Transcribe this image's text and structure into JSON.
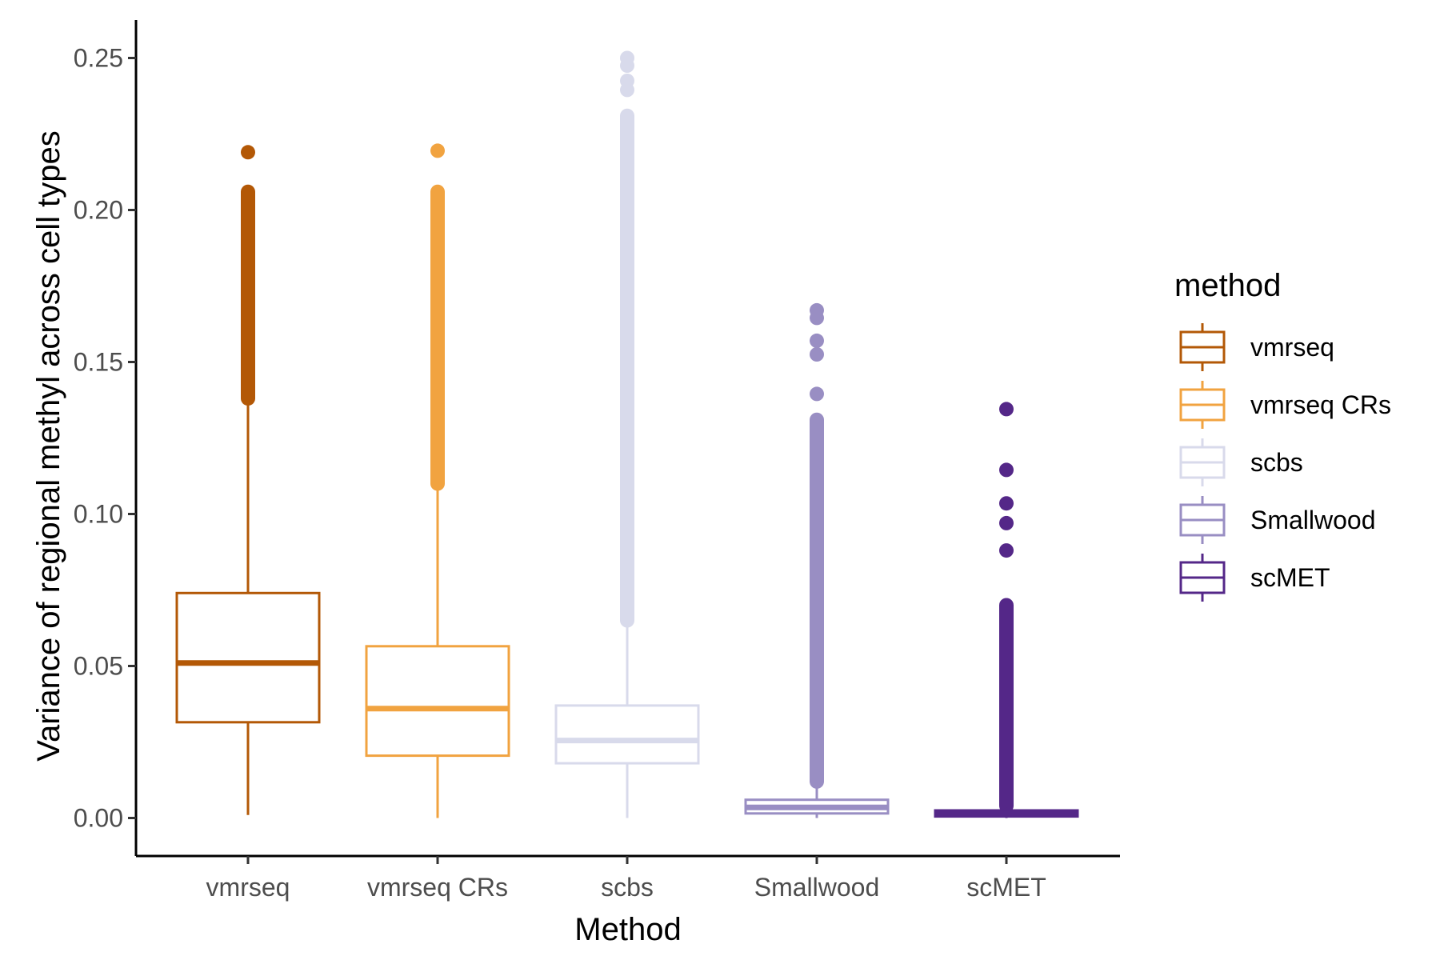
{
  "chart_data": {
    "type": "box",
    "xlabel": "Method",
    "ylabel": "Variance of regional methyl across cell types",
    "ylim": [
      -0.0125,
      0.2625
    ],
    "yticks": [
      0.0,
      0.05,
      0.1,
      0.15,
      0.2,
      0.25
    ],
    "ytick_labels": [
      "0.00",
      "0.05",
      "0.10",
      "0.15",
      "0.20",
      "0.25"
    ],
    "grid": false,
    "legend": {
      "title": "method",
      "position": "right"
    },
    "categories": [
      "vmrseq",
      "vmrseq CRs",
      "scbs",
      "Smallwood",
      "scMET"
    ],
    "series": [
      {
        "name": "vmrseq",
        "color": "#b35806",
        "whisker_low": 0.001,
        "q1": 0.0315,
        "median": 0.051,
        "q3": 0.074,
        "whisker_high": 0.137,
        "outlier_band": [
          0.138,
          0.206
        ],
        "outliers": [
          0.219
        ]
      },
      {
        "name": "vmrseq CRs",
        "color": "#f1a340",
        "whisker_low": 0.0,
        "q1": 0.0205,
        "median": 0.036,
        "q3": 0.0565,
        "whisker_high": 0.109,
        "outlier_band": [
          0.11,
          0.206
        ],
        "outliers": [
          0.2195
        ]
      },
      {
        "name": "scbs",
        "color": "#d8daeb",
        "whisker_low": 0.0,
        "q1": 0.018,
        "median": 0.0255,
        "q3": 0.037,
        "whisker_high": 0.064,
        "outlier_band": [
          0.065,
          0.231
        ],
        "outliers": [
          0.2395,
          0.2425,
          0.2475,
          0.25
        ]
      },
      {
        "name": "Smallwood",
        "color": "#998ec3",
        "whisker_low": 0.0,
        "q1": 0.0015,
        "median": 0.0035,
        "q3": 0.006,
        "whisker_high": 0.0115,
        "outlier_band": [
          0.012,
          0.131
        ],
        "outliers": [
          0.1395,
          0.1525,
          0.157,
          0.1645,
          0.167
        ]
      },
      {
        "name": "scMET",
        "color": "#542788",
        "whisker_low": 0.0,
        "q1": 0.0005,
        "median": 0.0015,
        "q3": 0.0025,
        "whisker_high": 0.0035,
        "outlier_band": [
          0.004,
          0.07
        ],
        "outliers": [
          0.088,
          0.097,
          0.1035,
          0.1145,
          0.1345
        ]
      }
    ]
  }
}
